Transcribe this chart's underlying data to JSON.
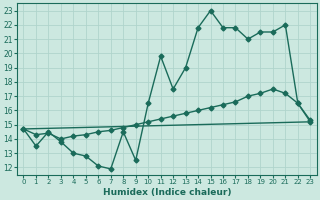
{
  "xlabel": "Humidex (Indice chaleur)",
  "background_color": "#cce8e0",
  "grid_color": "#b0d4cc",
  "line_color": "#1a6b5a",
  "xlim": [
    -0.5,
    23.5
  ],
  "ylim": [
    11.5,
    23.5
  ],
  "xticks": [
    0,
    1,
    2,
    3,
    4,
    5,
    6,
    7,
    8,
    9,
    10,
    11,
    12,
    13,
    14,
    15,
    16,
    17,
    18,
    19,
    20,
    21,
    22,
    23
  ],
  "yticks": [
    12,
    13,
    14,
    15,
    16,
    17,
    18,
    19,
    20,
    21,
    22,
    23
  ],
  "line1_x": [
    0,
    1,
    2,
    3,
    4,
    5,
    6,
    7,
    8,
    9,
    10,
    11,
    12,
    13,
    14,
    15,
    16,
    17,
    18,
    19,
    20,
    21,
    22,
    23
  ],
  "line1_y": [
    14.7,
    13.5,
    14.5,
    13.8,
    13.0,
    12.8,
    12.1,
    11.9,
    14.5,
    12.5,
    16.5,
    19.8,
    17.5,
    19.0,
    21.8,
    23.0,
    21.8,
    21.8,
    21.0,
    21.5,
    21.5,
    22.0,
    16.5,
    15.2
  ],
  "line2_x": [
    0,
    1,
    2,
    3,
    4,
    5,
    6,
    7,
    8,
    9,
    10,
    11,
    12,
    13,
    14,
    15,
    16,
    17,
    18,
    19,
    20,
    21,
    22,
    23
  ],
  "line2_y": [
    14.7,
    14.3,
    14.4,
    14.0,
    14.2,
    14.3,
    14.5,
    14.6,
    14.8,
    15.0,
    15.2,
    15.4,
    15.6,
    15.8,
    16.0,
    16.2,
    16.4,
    16.6,
    17.0,
    17.2,
    17.5,
    17.2,
    16.5,
    15.3
  ],
  "line3_x": [
    0,
    23
  ],
  "line3_y": [
    14.7,
    15.2
  ],
  "marker": "D",
  "marker_size": 2.5,
  "linewidth": 1.0
}
